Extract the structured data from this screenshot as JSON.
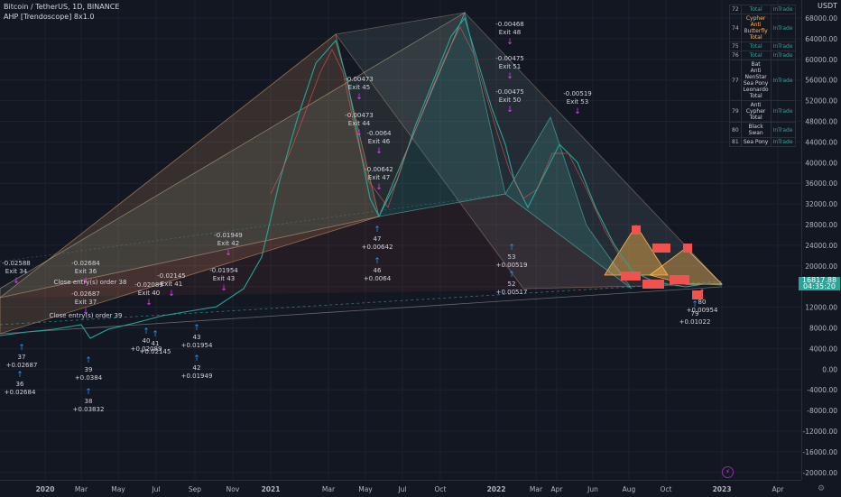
{
  "header": {
    "symbol": "Bitcoin / TetherUS, 1D, BINANCE",
    "indicator": "AHP [Trendoscope] 8x1.0"
  },
  "currency": "USDT",
  "price_tag": {
    "price": "16817.88",
    "countdown": "04:35:20"
  },
  "y_axis": [
    "68000.00",
    "64000.00",
    "60000.00",
    "56000.00",
    "52000.00",
    "48000.00",
    "44000.00",
    "40000.00",
    "36000.00",
    "32000.00",
    "28000.00",
    "24000.00",
    "20000.00",
    "16000.00",
    "12000.00",
    "8000.00",
    "4000.00",
    "0.00",
    "-4000.00",
    "-8000.00",
    "-12000.00",
    "-16000.00",
    "-20000.00"
  ],
  "x_axis": [
    "2020",
    "Mar",
    "May",
    "Jul",
    "Sep",
    "Nov",
    "2021",
    "Mar",
    "May",
    "Jul",
    "Oct",
    "2022",
    "Mar",
    "Apr",
    "Jun",
    "Aug",
    "Oct",
    "2023",
    "Apr"
  ],
  "pattern_table": [
    {
      "id": "72",
      "name": "Total",
      "status": "InTrade"
    },
    {
      "id": "74",
      "name": "Cypher\nAnti Butterfly\nTotal",
      "status": "InTrade"
    },
    {
      "id": "75",
      "name": "Total",
      "status": "InTrade"
    },
    {
      "id": "76",
      "name": "Total",
      "status": "InTrade"
    },
    {
      "id": "77",
      "name": "Bat\nAnti NenStar\nSea Pony\nLeonardo\nTotal",
      "status": "InTrade"
    },
    {
      "id": "79",
      "name": "Anti Cypher\nTotal",
      "status": "InTrade"
    },
    {
      "id": "80",
      "name": "Black Swan",
      "status": "InTrade"
    },
    {
      "id": "81",
      "name": "Sea Pony",
      "status": "InTrade"
    }
  ],
  "annotations": {
    "exits": [
      {
        "value": "-0.02588",
        "label": "Exit 34"
      },
      {
        "value": "-0.02684",
        "label": "Exit 36"
      },
      {
        "value": "-0.02687",
        "label": "Exit 37"
      },
      {
        "value": "-0.02089",
        "label": "Exit 40"
      },
      {
        "value": "-0.02145",
        "label": "Exit 41"
      },
      {
        "value": "-0.01949",
        "label": "Exit 42"
      },
      {
        "value": "-0.01954",
        "label": "Exit 43"
      },
      {
        "value": "-0.00473",
        "label": "Exit 45"
      },
      {
        "value": "-0.00473",
        "label": "Exit 44"
      },
      {
        "value": "-0.0064",
        "label": "Exit 46"
      },
      {
        "value": "-0.00642",
        "label": "Exit 47"
      },
      {
        "value": "-0.00468",
        "label": "Exit 48"
      },
      {
        "value": "-0.00475",
        "label": "Exit 51"
      },
      {
        "value": "-0.00475",
        "label": "Exit 50"
      },
      {
        "value": "-0.00519",
        "label": "Exit 53"
      }
    ],
    "entries": [
      {
        "num": "39",
        "value": "+0.0384"
      },
      {
        "num": "38",
        "value": "+0.03832"
      },
      {
        "num": "36",
        "value": "+0.02684"
      },
      {
        "num": "37",
        "value": "+0.02687"
      },
      {
        "num": "40",
        "value": "+0.02089"
      },
      {
        "num": "41",
        "value": "+0.02145"
      },
      {
        "num": "43",
        "value": "+0.01954"
      },
      {
        "num": "42",
        "value": "+0.01949"
      },
      {
        "num": "47",
        "value": "+0.00642"
      },
      {
        "num": "46",
        "value": "+0.0064"
      },
      {
        "num": "52",
        "value": "+0.00517"
      },
      {
        "num": "53",
        "value": "+0.00519"
      },
      {
        "num": "80",
        "value": "+0.00954"
      },
      {
        "num": "79",
        "value": "+0.01022"
      }
    ],
    "notes": [
      "Close entry(s) order 38",
      "Close entry(s) order 39"
    ]
  }
}
